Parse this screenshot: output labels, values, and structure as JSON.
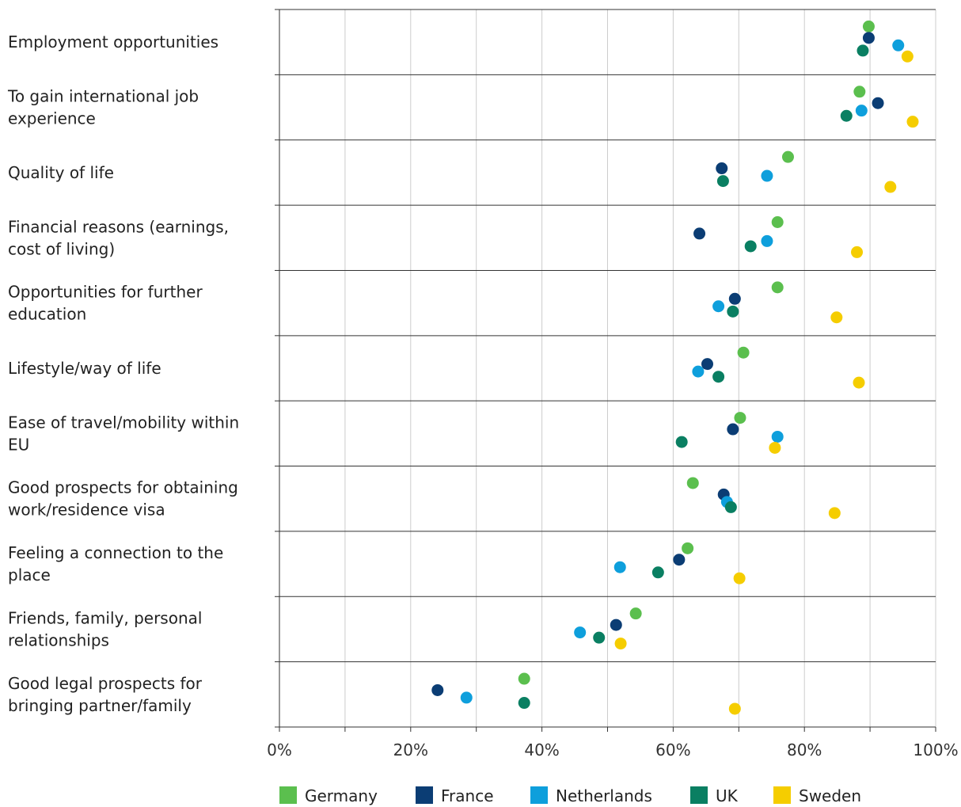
{
  "chart_data": {
    "type": "scatter",
    "orientation": "horizontal",
    "categories": [
      "Employment opportunities",
      "To gain international job experience",
      "Quality of life",
      "Financial reasons (earnings, cost of living)",
      "Opportunities for further education",
      "Lifestyle/way of life",
      "Ease of travel/mobility within EU",
      "Good prospects for obtaining work/residence visa",
      "Feeling a connection to the place",
      "Friends, family, personal relationships",
      "Good legal prospects for bringing partner/family"
    ],
    "category_label_lines": [
      [
        "Employment opportunities"
      ],
      [
        "To gain international job",
        "experience"
      ],
      [
        "Quality of life"
      ],
      [
        "Financial reasons (earnings,",
        "cost of living)"
      ],
      [
        "Opportunities for further",
        "education"
      ],
      [
        "Lifestyle/way of life"
      ],
      [
        "Ease of travel/mobility within",
        "EU"
      ],
      [
        "Good prospects for obtaining",
        "work/residence visa"
      ],
      [
        "Feeling a connection to the",
        "place"
      ],
      [
        "Friends, family, personal",
        "relationships"
      ],
      [
        "Good legal prospects for",
        "bringing partner/family"
      ]
    ],
    "series": [
      {
        "name": "Germany",
        "color": "#5bbf4e",
        "values": [
          89.8,
          88.4,
          77.5,
          75.9,
          75.9,
          70.7,
          70.2,
          63.0,
          62.2,
          54.3,
          37.3
        ]
      },
      {
        "name": "France",
        "color": "#0b3d74",
        "values": [
          89.8,
          91.2,
          67.4,
          64.0,
          69.4,
          65.2,
          69.1,
          67.7,
          60.9,
          51.3,
          24.1
        ]
      },
      {
        "name": "Netherlands",
        "color": "#0e9fdc",
        "values": [
          94.3,
          88.7,
          74.3,
          74.3,
          66.9,
          63.8,
          75.9,
          68.2,
          51.9,
          45.8,
          28.5
        ]
      },
      {
        "name": "UK",
        "color": "#0a7f62",
        "values": [
          88.9,
          86.4,
          67.6,
          71.8,
          69.1,
          66.9,
          61.3,
          68.8,
          57.7,
          48.7,
          37.3
        ]
      },
      {
        "name": "Sweden",
        "color": "#f5cd00",
        "values": [
          95.7,
          96.5,
          93.1,
          88.0,
          84.9,
          88.3,
          75.5,
          84.6,
          70.1,
          52.0,
          69.4
        ]
      }
    ],
    "xlim": [
      0,
      100
    ],
    "xticks": [
      "0%",
      "20%",
      "40%",
      "60%",
      "80%",
      "100%"
    ],
    "grid": true,
    "legend_position": "bottom"
  }
}
